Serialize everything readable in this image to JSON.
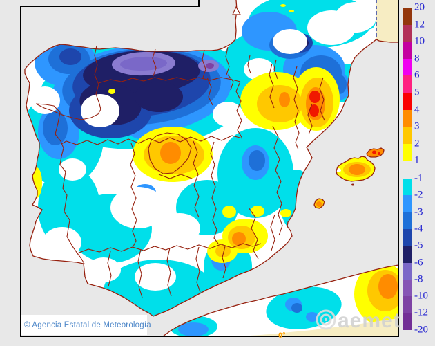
{
  "map": {
    "copyright": "© Agencia Estatal de Meteorología",
    "watermark": "aemet",
    "meridian_label": "0°"
  },
  "palette": {
    "sea_gray": "#E8E8E8",
    "land_white": "#FFFFFF",
    "outside_cream": "#F7EDC3",
    "border_red": "#96200E",
    "frame_black": "#000000",
    "label_blue": "#2323D0",
    "copyright_blue": "#4C86C8",
    "watermark_gray": "#D0D0D0",
    "meridian_orange": "#FF9E00",
    "maritime_dash_blue": "#2B3FA8"
  },
  "legend": {
    "warm_labels": [
      "20",
      "12",
      "10",
      "8",
      "6",
      "5",
      "4",
      "3",
      "2",
      "1"
    ],
    "cold_labels": [
      "-1",
      "-2",
      "-3",
      "-4",
      "-5",
      "-6",
      "-8",
      "-10",
      "-12",
      "-20"
    ],
    "warm_colors": [
      "#93370D",
      "#B23058",
      "#C400A0",
      "#F000F0",
      "#FF2080",
      "#FA0000",
      "#FF8C00",
      "#FFC800",
      "#FFFF00"
    ],
    "cold_colors": [
      "#00DFEA",
      "#2E96FF",
      "#1E70D8",
      "#1E46AC",
      "#1F1F66",
      "#7A68C8",
      "#8655B5",
      "#7D42A4",
      "#722F96"
    ]
  }
}
